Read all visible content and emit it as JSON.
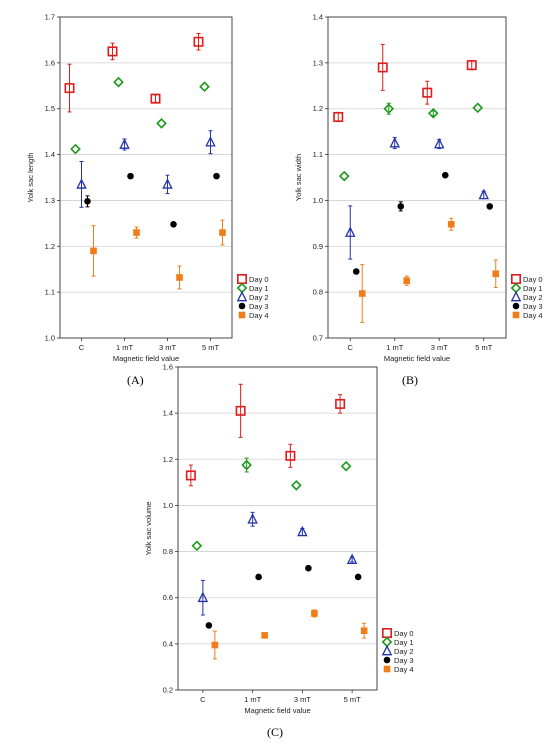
{
  "panels": [
    {
      "label": "(A)"
    },
    {
      "label": "(B)"
    },
    {
      "label": "(C)"
    }
  ],
  "legend": {
    "entries": [
      {
        "name": "Day 0",
        "color": "#e01b1b",
        "marker": "open-square"
      },
      {
        "name": "Day 1",
        "color": "#1a9a1a",
        "marker": "open-diamond"
      },
      {
        "name": "Day 2",
        "color": "#2233aa",
        "marker": "open-triangle"
      },
      {
        "name": "Day 3",
        "color": "#000000",
        "marker": "filled-circle"
      },
      {
        "name": "Day 4",
        "color": "#f07d1a",
        "marker": "filled-square"
      }
    ]
  },
  "chart_data": [
    {
      "type": "scatter",
      "panel": "(A)",
      "title": "",
      "xlabel": "Magnetic field value",
      "ylabel": "Yolk sac length",
      "categories": [
        "C",
        "1 mT",
        "3 mT",
        "5 mT"
      ],
      "ylim": [
        1.0,
        1.7
      ],
      "yticks": [
        "1.0",
        "1.1",
        "1.2",
        "1.3",
        "1.4",
        "1.5",
        "1.6",
        "1.7"
      ],
      "grid": "horizontal",
      "legend_position": "right-bottom-outside",
      "series": [
        {
          "name": "Day 0",
          "values": [
            1.545,
            1.625,
            1.522,
            1.646
          ],
          "errors": [
            0.052,
            0.018,
            0.008,
            0.018
          ]
        },
        {
          "name": "Day 1",
          "values": [
            1.412,
            1.558,
            1.468,
            1.548
          ],
          "errors": [
            0.0,
            0.0,
            0.0,
            0.0
          ]
        },
        {
          "name": "Day 2",
          "values": [
            1.335,
            1.422,
            1.335,
            1.427
          ],
          "errors": [
            0.05,
            0.012,
            0.02,
            0.025
          ]
        },
        {
          "name": "Day 3",
          "values": [
            1.298,
            1.353,
            1.248,
            1.353
          ],
          "errors": [
            0.012,
            0.0,
            0.0,
            0.0
          ]
        },
        {
          "name": "Day 4",
          "values": [
            1.19,
            1.23,
            1.132,
            1.23
          ],
          "errors": [
            0.055,
            0.012,
            0.025,
            0.027
          ]
        }
      ]
    },
    {
      "type": "scatter",
      "panel": "(B)",
      "title": "",
      "xlabel": "Magnetic field value",
      "ylabel": "Yolk sac width",
      "categories": [
        "C",
        "1 mT",
        "3 mT",
        "5 mT"
      ],
      "ylim": [
        0.7,
        1.4
      ],
      "yticks": [
        "0.7",
        "0.8",
        "0.9",
        "1.0",
        "1.1",
        "1.2",
        "1.3",
        "1.4"
      ],
      "grid": "horizontal",
      "legend_position": "right-bottom-outside",
      "series": [
        {
          "name": "Day 0",
          "values": [
            1.182,
            1.29,
            1.235,
            1.295
          ],
          "errors": [
            0.01,
            0.05,
            0.025,
            0.01
          ]
        },
        {
          "name": "Day 1",
          "values": [
            1.053,
            1.2,
            1.19,
            1.202
          ],
          "errors": [
            0.0,
            0.012,
            0.005,
            0.0
          ]
        },
        {
          "name": "Day 2",
          "values": [
            0.93,
            1.125,
            1.123,
            1.012
          ],
          "errors": [
            0.058,
            0.012,
            0.01,
            0.008
          ]
        },
        {
          "name": "Day 3",
          "values": [
            0.845,
            0.987,
            1.055,
            0.987
          ],
          "errors": [
            0.0,
            0.01,
            0.0,
            0.0
          ]
        },
        {
          "name": "Day 4",
          "values": [
            0.797,
            0.825,
            0.948,
            0.84
          ],
          "errors": [
            0.063,
            0.01,
            0.013,
            0.03
          ]
        }
      ]
    },
    {
      "type": "scatter",
      "panel": "(C)",
      "title": "",
      "xlabel": "Magnetic field value",
      "ylabel": "Yolk sac volume",
      "categories": [
        "C",
        "1 mT",
        "3 mT",
        "5 mT"
      ],
      "ylim": [
        0.2,
        1.6
      ],
      "yticks": [
        "0.2",
        "0.4",
        "0.6",
        "0.8",
        "1.0",
        "1.2",
        "1.4",
        "1.6"
      ],
      "grid": "horizontal",
      "legend_position": "right-bottom-outside",
      "series": [
        {
          "name": "Day 0",
          "values": [
            1.13,
            1.41,
            1.215,
            1.44
          ],
          "errors": [
            0.045,
            0.115,
            0.05,
            0.04
          ]
        },
        {
          "name": "Day 1",
          "values": [
            0.825,
            1.175,
            1.087,
            1.17
          ],
          "errors": [
            0.0,
            0.03,
            0.0,
            0.0
          ]
        },
        {
          "name": "Day 2",
          "values": [
            0.6,
            0.94,
            0.885,
            0.765
          ],
          "errors": [
            0.075,
            0.03,
            0.015,
            0.01
          ]
        },
        {
          "name": "Day 3",
          "values": [
            0.48,
            0.69,
            0.728,
            0.69
          ],
          "errors": [
            0.0,
            0.0,
            0.0,
            0.0
          ]
        },
        {
          "name": "Day 4",
          "values": [
            0.395,
            0.437,
            0.532,
            0.457
          ],
          "errors": [
            0.06,
            0.012,
            0.015,
            0.032
          ]
        }
      ]
    }
  ]
}
